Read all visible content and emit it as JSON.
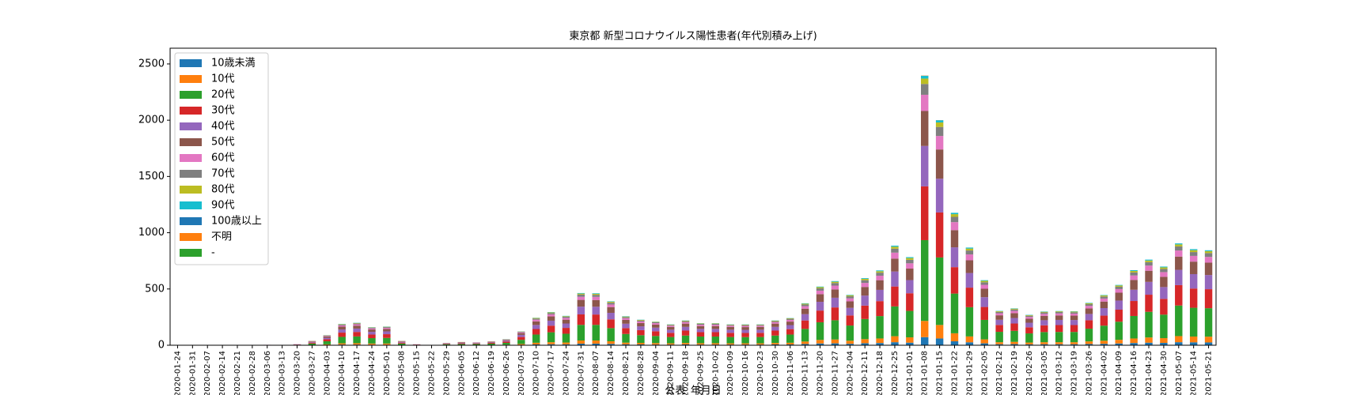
{
  "chart_data": {
    "type": "stacked_bar",
    "title": "東京都 新型コロナウイルス陽性患者(年代別積み上げ)",
    "x_label": "公表_年月日",
    "categories": [
      "2020-01-24",
      "2020-01-31",
      "2020-02-07",
      "2020-02-14",
      "2020-02-21",
      "2020-02-28",
      "2020-03-06",
      "2020-03-13",
      "2020-03-20",
      "2020-03-27",
      "2020-04-03",
      "2020-04-10",
      "2020-04-17",
      "2020-04-24",
      "2020-05-01",
      "2020-05-08",
      "2020-05-15",
      "2020-05-22",
      "2020-05-29",
      "2020-06-05",
      "2020-06-12",
      "2020-06-19",
      "2020-06-26",
      "2020-07-03",
      "2020-07-10",
      "2020-07-17",
      "2020-07-24",
      "2020-07-31",
      "2020-08-07",
      "2020-08-14",
      "2020-08-21",
      "2020-08-28",
      "2020-09-04",
      "2020-09-11",
      "2020-09-18",
      "2020-09-25",
      "2020-10-02",
      "2020-10-09",
      "2020-10-16",
      "2020-10-23",
      "2020-10-30",
      "2020-11-06",
      "2020-11-13",
      "2020-11-20",
      "2020-11-27",
      "2020-12-04",
      "2020-12-11",
      "2020-12-18",
      "2020-12-25",
      "2021-01-01",
      "2021-01-08",
      "2021-01-15",
      "2021-01-22",
      "2021-01-29",
      "2021-02-05",
      "2021-02-12",
      "2021-02-19",
      "2021-02-26",
      "2021-03-05",
      "2021-03-12",
      "2021-03-19",
      "2021-03-26",
      "2021-04-02",
      "2021-04-09",
      "2021-04-16",
      "2021-04-23",
      "2021-04-30",
      "2021-05-07",
      "2021-05-14",
      "2021-05-21"
    ],
    "series": [
      {
        "name": "10歳未満",
        "color": "#1f77b4",
        "values": [
          0,
          0,
          0,
          0,
          0,
          0,
          0,
          0,
          0,
          1,
          3,
          6,
          6,
          5,
          5,
          1,
          0,
          0,
          1,
          1,
          1,
          1,
          2,
          4,
          7,
          9,
          8,
          14,
          14,
          12,
          8,
          7,
          6,
          6,
          7,
          6,
          6,
          6,
          6,
          6,
          7,
          7,
          11,
          16,
          17,
          13,
          18,
          20,
          27,
          23,
          72,
          60,
          35,
          26,
          17,
          9,
          10,
          8,
          9,
          9,
          9,
          11,
          13,
          16,
          20,
          23,
          21,
          27,
          26,
          25
        ]
      },
      {
        "name": "10代",
        "color": "#ff7f0e",
        "values": [
          0,
          0,
          0,
          0,
          0,
          0,
          0,
          0,
          1,
          2,
          5,
          11,
          12,
          10,
          10,
          2,
          1,
          0,
          1,
          2,
          2,
          2,
          3,
          7,
          15,
          18,
          16,
          28,
          28,
          23,
          15,
          14,
          13,
          11,
          13,
          12,
          12,
          11,
          11,
          11,
          13,
          15,
          22,
          31,
          34,
          27,
          36,
          40,
          53,
          47,
          144,
          120,
          71,
          52,
          35,
          18,
          20,
          16,
          18,
          18,
          18,
          23,
          27,
          32,
          40,
          46,
          42,
          54,
          51,
          51
        ]
      },
      {
        "name": "20代",
        "color": "#2ca02c",
        "values": [
          0,
          0,
          0,
          1,
          1,
          1,
          1,
          0,
          3,
          12,
          27,
          57,
          60,
          48,
          50,
          12,
          3,
          1,
          7,
          8,
          8,
          11,
          16,
          37,
          73,
          88,
          78,
          139,
          139,
          117,
          77,
          68,
          63,
          56,
          66,
          59,
          59,
          56,
          55,
          56,
          66,
          73,
          112,
          157,
          171,
          135,
          179,
          199,
          265,
          235,
          718,
          600,
          353,
          260,
          173,
          92,
          98,
          81,
          90,
          91,
          91,
          113,
          134,
          161,
          200,
          228,
          209,
          272,
          256,
          253
        ]
      },
      {
        "name": "30代",
        "color": "#d62728",
        "values": [
          1,
          0,
          0,
          0,
          1,
          0,
          1,
          1,
          2,
          8,
          18,
          38,
          40,
          32,
          33,
          8,
          2,
          1,
          4,
          6,
          5,
          7,
          11,
          25,
          49,
          59,
          52,
          93,
          92,
          78,
          52,
          45,
          42,
          37,
          44,
          39,
          39,
          37,
          37,
          37,
          44,
          48,
          75,
          104,
          114,
          90,
          119,
          133,
          177,
          157,
          478,
          400,
          235,
          174,
          115,
          61,
          65,
          54,
          60,
          61,
          61,
          75,
          89,
          107,
          133,
          152,
          140,
          181,
          171,
          169
        ]
      },
      {
        "name": "40代",
        "color": "#9467bd",
        "values": [
          0,
          0,
          0,
          1,
          0,
          0,
          1,
          0,
          2,
          6,
          13,
          28,
          30,
          24,
          25,
          6,
          1,
          0,
          3,
          4,
          4,
          5,
          8,
          19,
          36,
          44,
          39,
          69,
          69,
          58,
          39,
          34,
          32,
          28,
          33,
          29,
          29,
          28,
          28,
          28,
          33,
          36,
          56,
          78,
          86,
          67,
          89,
          100,
          133,
          117,
          359,
          300,
          176,
          130,
          87,
          46,
          49,
          41,
          45,
          46,
          45,
          56,
          67,
          81,
          100,
          114,
          105,
          136,
          128,
          126
        ]
      },
      {
        "name": "50代",
        "color": "#8c564b",
        "values": [
          0,
          0,
          0,
          0,
          1,
          0,
          0,
          1,
          1,
          5,
          12,
          25,
          26,
          21,
          21,
          5,
          1,
          0,
          3,
          4,
          3,
          5,
          7,
          16,
          32,
          38,
          34,
          60,
          60,
          51,
          34,
          29,
          27,
          24,
          29,
          25,
          25,
          24,
          24,
          24,
          29,
          31,
          49,
          68,
          74,
          58,
          77,
          86,
          115,
          102,
          311,
          260,
          153,
          113,
          75,
          40,
          43,
          35,
          39,
          40,
          39,
          49,
          58,
          70,
          87,
          99,
          91,
          118,
          111,
          110
        ]
      },
      {
        "name": "60代",
        "color": "#e377c2",
        "values": [
          0,
          0,
          0,
          0,
          0,
          0,
          1,
          0,
          1,
          2,
          5,
          11,
          12,
          10,
          10,
          2,
          1,
          0,
          1,
          2,
          2,
          2,
          3,
          7,
          15,
          18,
          16,
          28,
          28,
          23,
          15,
          14,
          13,
          11,
          13,
          12,
          12,
          11,
          11,
          11,
          13,
          15,
          22,
          31,
          34,
          27,
          36,
          40,
          53,
          47,
          144,
          120,
          71,
          52,
          35,
          18,
          20,
          16,
          18,
          18,
          18,
          23,
          27,
          32,
          40,
          46,
          42,
          54,
          51,
          51
        ]
      },
      {
        "name": "70代",
        "color": "#7f7f7f",
        "values": [
          0,
          0,
          0,
          0,
          0,
          0,
          0,
          0,
          0,
          2,
          4,
          8,
          8,
          6,
          7,
          2,
          0,
          0,
          1,
          1,
          1,
          1,
          2,
          5,
          10,
          12,
          10,
          19,
          18,
          16,
          10,
          9,
          8,
          7,
          9,
          8,
          8,
          7,
          7,
          7,
          9,
          10,
          15,
          21,
          23,
          18,
          24,
          27,
          35,
          31,
          96,
          80,
          47,
          35,
          23,
          12,
          13,
          11,
          12,
          12,
          12,
          15,
          18,
          21,
          27,
          30,
          28,
          36,
          34,
          34
        ]
      },
      {
        "name": "80代",
        "color": "#bcbd22",
        "values": [
          0,
          0,
          0,
          0,
          0,
          0,
          0,
          0,
          0,
          1,
          2,
          4,
          4,
          3,
          3,
          1,
          0,
          0,
          0,
          1,
          0,
          1,
          1,
          2,
          5,
          6,
          5,
          9,
          9,
          8,
          5,
          5,
          4,
          4,
          4,
          4,
          4,
          4,
          4,
          4,
          4,
          5,
          7,
          10,
          11,
          9,
          12,
          13,
          18,
          16,
          48,
          40,
          24,
          17,
          12,
          6,
          7,
          5,
          6,
          6,
          6,
          8,
          9,
          11,
          13,
          15,
          14,
          18,
          17,
          17
        ]
      },
      {
        "name": "90代",
        "color": "#17becf",
        "values": [
          0,
          0,
          0,
          0,
          0,
          0,
          0,
          0,
          0,
          0,
          1,
          2,
          2,
          2,
          2,
          0,
          0,
          0,
          0,
          0,
          0,
          0,
          1,
          1,
          2,
          3,
          3,
          5,
          5,
          4,
          3,
          2,
          2,
          2,
          2,
          2,
          2,
          2,
          2,
          2,
          2,
          2,
          4,
          5,
          6,
          4,
          6,
          7,
          9,
          8,
          24,
          20,
          12,
          9,
          6,
          3,
          3,
          3,
          3,
          3,
          3,
          4,
          4,
          5,
          7,
          8,
          7,
          9,
          9,
          8
        ]
      },
      {
        "name": "100歳以上",
        "color": "#1f77b4",
        "values": [
          0,
          0,
          0,
          0,
          0,
          0,
          0,
          0,
          0,
          0,
          0,
          0,
          0,
          0,
          0,
          0,
          0,
          0,
          0,
          0,
          0,
          0,
          0,
          0,
          0,
          0,
          0,
          0,
          0,
          0,
          0,
          0,
          0,
          0,
          0,
          0,
          0,
          0,
          0,
          0,
          0,
          0,
          0,
          0,
          0,
          0,
          0,
          0,
          0,
          0,
          1,
          0,
          0,
          0,
          0,
          0,
          0,
          0,
          0,
          0,
          0,
          0,
          0,
          0,
          0,
          0,
          0,
          0,
          0,
          0
        ]
      },
      {
        "name": "不明",
        "color": "#ff7f0e",
        "values": [
          0,
          0,
          0,
          0,
          0,
          0,
          0,
          0,
          0,
          0,
          0,
          0,
          0,
          0,
          0,
          0,
          0,
          0,
          0,
          0,
          0,
          0,
          0,
          0,
          0,
          0,
          0,
          0,
          0,
          0,
          0,
          0,
          0,
          0,
          0,
          0,
          0,
          0,
          0,
          0,
          0,
          0,
          0,
          0,
          0,
          0,
          0,
          0,
          0,
          0,
          2,
          1,
          0,
          0,
          0,
          0,
          0,
          0,
          0,
          0,
          0,
          0,
          0,
          0,
          0,
          0,
          0,
          0,
          0,
          0
        ]
      },
      {
        "name": "-",
        "color": "#2ca02c",
        "values": [
          0,
          0,
          0,
          0,
          0,
          0,
          0,
          0,
          0,
          0,
          0,
          0,
          0,
          0,
          0,
          0,
          0,
          0,
          0,
          0,
          0,
          0,
          0,
          0,
          0,
          0,
          0,
          0,
          0,
          0,
          0,
          0,
          0,
          0,
          0,
          0,
          0,
          0,
          0,
          0,
          0,
          0,
          0,
          0,
          0,
          0,
          0,
          0,
          0,
          0,
          0,
          0,
          0,
          0,
          0,
          0,
          0,
          0,
          0,
          0,
          0,
          0,
          0,
          0,
          0,
          0,
          0,
          0,
          0,
          0
        ]
      }
    ],
    "ylim": [
      0,
      2640
    ],
    "yticks": [
      0,
      500,
      1000,
      1500,
      2000,
      2500
    ],
    "legend": "upper left"
  }
}
